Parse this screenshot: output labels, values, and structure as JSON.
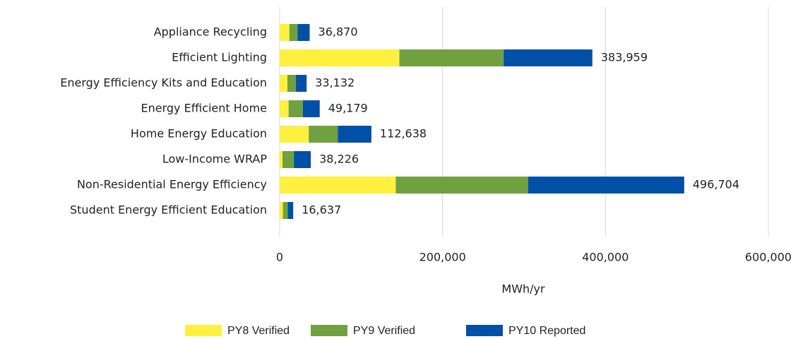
{
  "chart_data": {
    "type": "stacked_barh",
    "categories": [
      "Appliance Recycling",
      "Efficient Lighting",
      "Energy Efficiency Kits and Education",
      "Energy Efficient Home",
      "Home Energy Education",
      "Low-Income WRAP",
      "Non-Residential Energy Efficiency",
      "Student Energy Efficient Education"
    ],
    "series": [
      {
        "name": "PY8 Verified",
        "color": "#ffef3f",
        "values": [
          12000,
          147000,
          9500,
          11000,
          35700,
          3500,
          142600,
          4000
        ]
      },
      {
        "name": "PY9 Verified",
        "color": "#70a040",
        "values": [
          10000,
          128000,
          10500,
          17500,
          35700,
          14000,
          162600,
          6000
        ]
      },
      {
        "name": "PY10 Reported",
        "color": "#0050a8",
        "values": [
          14870,
          108959,
          13132,
          20679,
          41238,
          20726,
          191504,
          6637
        ]
      }
    ],
    "totals": [
      {
        "value": 36870,
        "label": "36,870"
      },
      {
        "value": 383959,
        "label": "383,959"
      },
      {
        "value": 33132,
        "label": "33,132"
      },
      {
        "value": 49179,
        "label": "49,179"
      },
      {
        "value": 112638,
        "label": "112,638"
      },
      {
        "value": 38226,
        "label": "38,226"
      },
      {
        "value": 496704,
        "label": "496,704"
      },
      {
        "value": 16637,
        "label": "16,637"
      }
    ],
    "xlabel": "MWh/yr",
    "xlim": [
      0,
      600000
    ],
    "xticks": [
      0,
      {
        "value": 200000,
        "label": "200,000"
      },
      {
        "value": 400000,
        "label": "400,000"
      },
      {
        "value": 600000,
        "label": "600,000"
      }
    ],
    "grid": true,
    "legend": "bottom"
  }
}
